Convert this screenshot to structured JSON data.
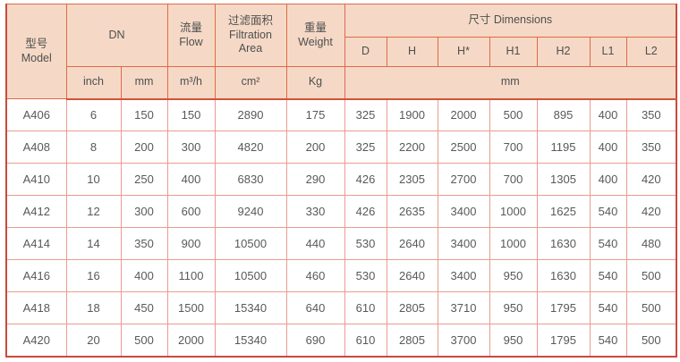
{
  "table": {
    "title_semantic": "filter-specification-table",
    "header": {
      "model": "型号\nModel",
      "dn": "DN",
      "flow": "流量\nFlow",
      "filtration_area": "过滤面积\nFiltration\nArea",
      "weight": "重量\nWeight",
      "dimensions": "尺寸 Dimensions",
      "dim_cols": [
        "D",
        "H",
        "H*",
        "H1",
        "H2",
        "L1",
        "L2"
      ],
      "units": {
        "dn_inch": "inch",
        "dn_mm": "mm",
        "flow": "m³/h",
        "area": "cm²",
        "weight": "Kg",
        "dims": "mm"
      }
    },
    "column_keys": [
      "model",
      "dn-inch",
      "dn-mm",
      "flow",
      "filtration-area",
      "weight",
      "d",
      "h",
      "h-star",
      "h1",
      "h2",
      "l1",
      "l2"
    ],
    "rows": [
      [
        "A406",
        "6",
        "150",
        "150",
        "2890",
        "175",
        "325",
        "1900",
        "2000",
        "500",
        "895",
        "400",
        "350"
      ],
      [
        "A408",
        "8",
        "200",
        "300",
        "4820",
        "200",
        "325",
        "2200",
        "2500",
        "700",
        "1195",
        "400",
        "350"
      ],
      [
        "A410",
        "10",
        "250",
        "400",
        "6830",
        "290",
        "426",
        "2305",
        "2700",
        "700",
        "1305",
        "400",
        "420"
      ],
      [
        "A412",
        "12",
        "300",
        "600",
        "9240",
        "330",
        "426",
        "2635",
        "3400",
        "1000",
        "1625",
        "540",
        "420"
      ],
      [
        "A414",
        "14",
        "350",
        "900",
        "10500",
        "440",
        "530",
        "2640",
        "3400",
        "1000",
        "1630",
        "540",
        "480"
      ],
      [
        "A416",
        "16",
        "400",
        "1100",
        "10500",
        "460",
        "530",
        "2640",
        "3400",
        "950",
        "1630",
        "540",
        "500"
      ],
      [
        "A418",
        "18",
        "450",
        "1500",
        "15340",
        "640",
        "610",
        "2805",
        "3710",
        "950",
        "1795",
        "540",
        "500"
      ],
      [
        "A420",
        "20",
        "500",
        "2000",
        "15340",
        "690",
        "610",
        "2805",
        "3700",
        "950",
        "1795",
        "540",
        "500"
      ]
    ],
    "colors": {
      "header_bg": "#f5d9c6",
      "header_border": "#dd6b48",
      "outer_border": "#c94b3c",
      "body_border": "#eb9b90",
      "header_separator": "#d0543a",
      "header_text": "#4f4f4f",
      "body_text": "#595959"
    }
  }
}
